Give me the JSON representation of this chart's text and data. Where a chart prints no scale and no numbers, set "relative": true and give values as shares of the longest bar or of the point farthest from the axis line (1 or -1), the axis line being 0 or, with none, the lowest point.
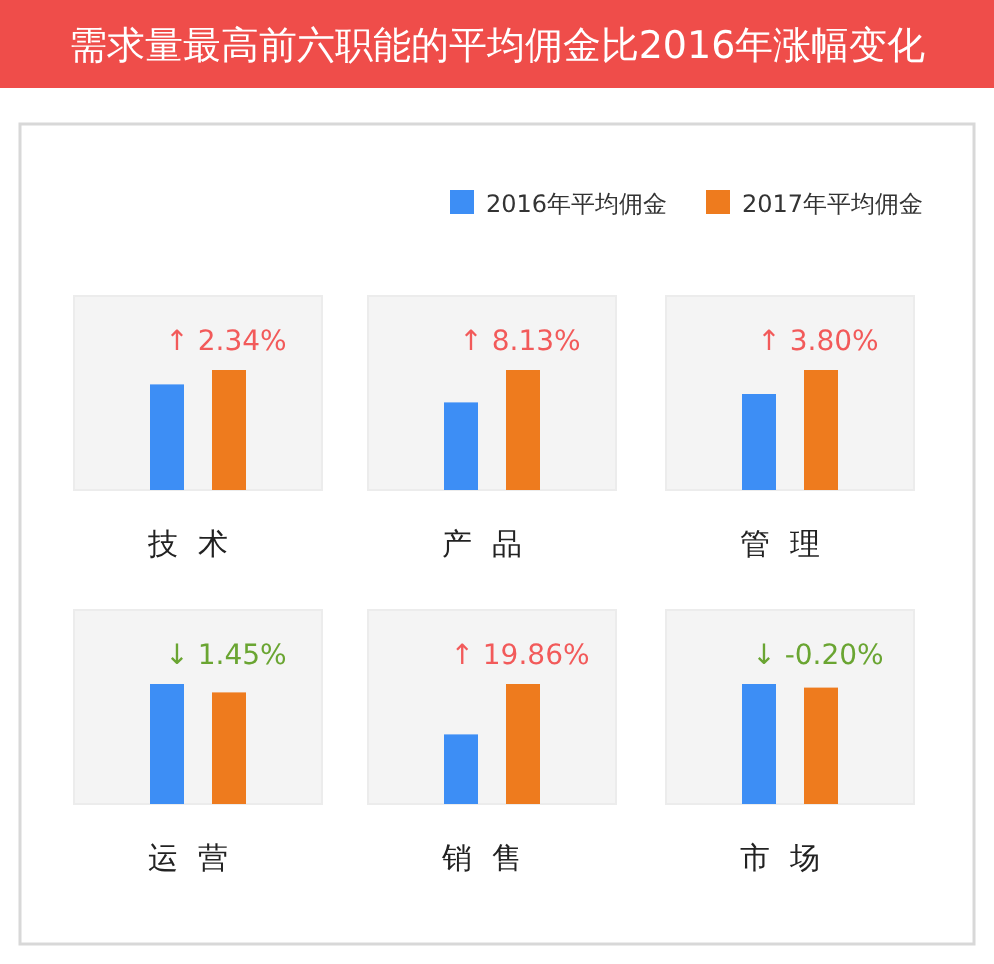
{
  "chart_data": [
    {
      "type": "bar",
      "title": "需求量最高前六职能的平均佣金比2016年涨幅变化",
      "categories": [
        "技术"
      ],
      "relative": true,
      "legend": "top right",
      "annotations": [
        "↑ 2.34%"
      ],
      "series": [
        {
          "name": "2016年平均佣金",
          "color": "#3d8ef5",
          "values": [
            0.88
          ]
        },
        {
          "name": "2017年平均佣金",
          "color": "#ee7b1e",
          "values": [
            1
          ]
        }
      ]
    },
    {
      "type": "bar",
      "categories": [
        "产品"
      ],
      "relative": true,
      "annotations": [
        "↑ 8.13%"
      ],
      "series": [
        {
          "color": "#3d8ef5",
          "values": [
            0.73
          ]
        },
        {
          "color": "#ee7b1e",
          "values": [
            1
          ]
        }
      ]
    },
    {
      "type": "bar",
      "categories": [
        "管理"
      ],
      "relative": true,
      "annotations": [
        "↑ 3.80%"
      ],
      "series": [
        {
          "color": "#3d8ef5",
          "values": [
            0.8
          ]
        },
        {
          "color": "#ee7b1e",
          "values": [
            1
          ]
        }
      ]
    },
    {
      "type": "bar",
      "categories": [
        "运营"
      ],
      "relative": true,
      "annotations": [
        "↓ 1.45%"
      ],
      "series": [
        {
          "color": "#3d8ef5",
          "values": [
            1
          ]
        },
        {
          "color": "#ee7b1e",
          "values": [
            0.93
          ]
        }
      ]
    },
    {
      "type": "bar",
      "categories": [
        "销售"
      ],
      "relative": true,
      "annotations": [
        "↑ 19.86%"
      ],
      "series": [
        {
          "color": "#3d8ef5",
          "values": [
            0.58
          ]
        },
        {
          "color": "#ee7b1e",
          "values": [
            1
          ]
        }
      ]
    },
    {
      "type": "bar",
      "categories": [
        "市场"
      ],
      "relative": true,
      "annotations": [
        "↓ -0.20%"
      ],
      "series": [
        {
          "color": "#3d8ef5",
          "values": [
            1
          ]
        },
        {
          "color": "#ee7b1e",
          "values": [
            0.97
          ]
        }
      ]
    }
  ]
}
